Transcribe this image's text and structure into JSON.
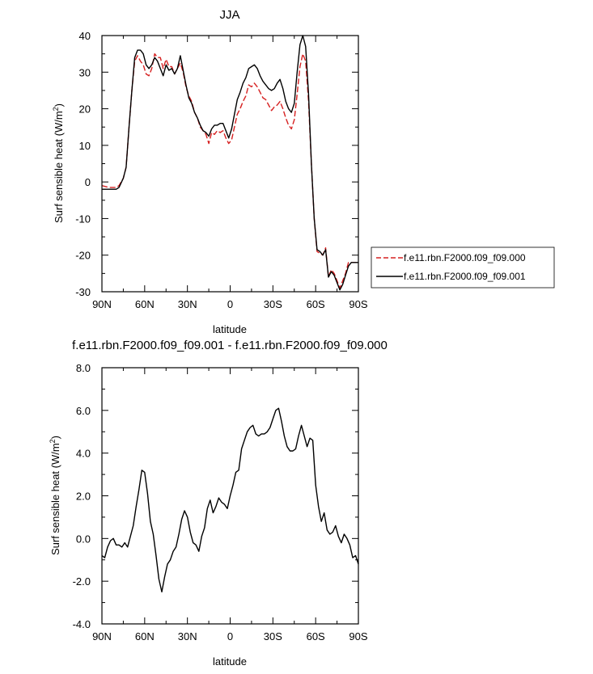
{
  "chart_data": [
    {
      "type": "line",
      "title": "JJA",
      "xlabel": "latitude",
      "ylabel": "Surf sensible heat (W/m",
      "ylabel_sup": "2",
      "ylabel_close": ")",
      "xlim": [
        90,
        -90
      ],
      "ylim": [
        -30,
        40
      ],
      "x_ticks": [
        90,
        60,
        30,
        0,
        -30,
        -60,
        -90
      ],
      "x_tick_labels": [
        "90N",
        "60N",
        "30N",
        "0",
        "30S",
        "60S",
        "90S"
      ],
      "y_ticks": [
        -30,
        -20,
        -10,
        0,
        10,
        20,
        30,
        40
      ],
      "y_tick_labels": [
        "-30",
        "-20",
        "-10",
        "0",
        "10",
        "20",
        "30",
        "40"
      ],
      "legend": "right",
      "series": [
        {
          "name": "f.e11.rbn.F2000.f09_f09.000",
          "color": "#d62020",
          "dash": "dashed",
          "x": [
            90,
            85,
            82,
            80,
            78,
            75,
            73,
            71,
            69,
            67,
            65,
            63,
            61,
            59,
            57,
            55,
            53,
            51,
            49,
            47,
            45,
            43,
            41,
            39,
            37,
            35,
            33,
            31,
            29,
            27,
            25,
            23,
            21,
            19,
            17,
            15,
            13,
            11,
            9,
            7,
            5,
            3,
            1,
            -1,
            -3,
            -5,
            -7,
            -9,
            -11,
            -13,
            -15,
            -17,
            -19,
            -21,
            -23,
            -25,
            -27,
            -29,
            -31,
            -33,
            -35,
            -37,
            -39,
            -41,
            -43,
            -45,
            -47,
            -49,
            -51,
            -53,
            -55,
            -57,
            -59,
            -61,
            -63,
            -65,
            -67,
            -69,
            -71,
            -73,
            -75,
            -77,
            -79,
            -81,
            -83,
            -85,
            -87,
            -90
          ],
          "y": [
            -1,
            -1.5,
            -1.5,
            -1.5,
            -1,
            1,
            4,
            15,
            25,
            33,
            34.5,
            33,
            32,
            29.5,
            29,
            31,
            35,
            34,
            34,
            31,
            33.5,
            31.5,
            31.5,
            29.5,
            31,
            32.5,
            30,
            26,
            23.5,
            22,
            19,
            17.5,
            15,
            14,
            13,
            10.5,
            13.5,
            13,
            14,
            13.5,
            14,
            12,
            10.5,
            11.5,
            15,
            18.5,
            20,
            22,
            23.5,
            26.5,
            26,
            27,
            26,
            24.5,
            23,
            22.5,
            21,
            19.5,
            20.5,
            21,
            22,
            20,
            17.5,
            15.5,
            14.5,
            17,
            24,
            31.5,
            35,
            33,
            22,
            5,
            -10,
            -19,
            -19.5,
            -20,
            -18,
            -26,
            -24,
            -25,
            -27,
            -29,
            -27,
            -25,
            -22,
            -22,
            -22,
            -22
          ]
        },
        {
          "name": "f.e11.rbn.F2000.f09_f09.001",
          "color": "#000000",
          "dash": "solid",
          "x": [
            90,
            85,
            82,
            80,
            78,
            75,
            73,
            71,
            69,
            67,
            65,
            63,
            61,
            59,
            57,
            55,
            53,
            51,
            49,
            47,
            45,
            43,
            41,
            39,
            37,
            35,
            33,
            31,
            29,
            27,
            25,
            23,
            21,
            19,
            17,
            15,
            13,
            11,
            9,
            7,
            5,
            3,
            1,
            -1,
            -3,
            -5,
            -7,
            -9,
            -11,
            -13,
            -15,
            -17,
            -19,
            -21,
            -23,
            -25,
            -27,
            -29,
            -31,
            -33,
            -35,
            -37,
            -39,
            -41,
            -43,
            -45,
            -47,
            -49,
            -51,
            -53,
            -55,
            -57,
            -59,
            -61,
            -63,
            -65,
            -67,
            -69,
            -71,
            -73,
            -75,
            -77,
            -79,
            -81,
            -83,
            -85,
            -87,
            -90
          ],
          "y": [
            -2,
            -2,
            -2,
            -2,
            -1.5,
            1,
            4,
            15,
            25,
            34,
            36,
            36,
            35,
            32,
            31,
            32,
            34,
            33,
            31,
            29,
            32,
            30.5,
            31,
            29.5,
            31,
            34.5,
            30.5,
            26.5,
            23,
            21.5,
            19,
            17.5,
            15.5,
            14,
            13.5,
            12.5,
            14.5,
            15.5,
            15.5,
            16,
            16,
            14,
            12,
            14.5,
            18.5,
            22.5,
            24.5,
            27,
            28.5,
            31,
            31.5,
            32,
            31,
            29,
            27.5,
            26.5,
            25.5,
            25,
            25.5,
            27,
            28,
            25.5,
            22,
            20,
            19,
            21.5,
            30,
            37.5,
            40,
            37,
            24,
            5,
            -10,
            -18.5,
            -19,
            -20,
            -18.5,
            -26,
            -24.5,
            -25.5,
            -27.5,
            -29.5,
            -28,
            -25.5,
            -23,
            -22,
            -22,
            -22
          ]
        }
      ]
    },
    {
      "type": "line",
      "title": "f.e11.rbn.F2000.f09_f09.001 - f.e11.rbn.F2000.f09_f09.000",
      "xlabel": "latitude",
      "ylabel": "Surf sensible heat (W/m",
      "ylabel_sup": "2",
      "ylabel_close": ")",
      "xlim": [
        90,
        -90
      ],
      "ylim": [
        -4,
        8
      ],
      "x_ticks": [
        90,
        60,
        30,
        0,
        -30,
        -60,
        -90
      ],
      "x_tick_labels": [
        "90N",
        "60N",
        "30N",
        "0",
        "30S",
        "60S",
        "90S"
      ],
      "y_ticks": [
        -4,
        -2,
        0,
        2,
        4,
        6,
        8
      ],
      "y_tick_labels": [
        "-4.0",
        "-2.0",
        "0.0",
        "2.0",
        "4.0",
        "6.0",
        "8.0"
      ],
      "series": [
        {
          "color": "#000000",
          "dash": "solid",
          "x": [
            90,
            88,
            86,
            84,
            82,
            80,
            78,
            76,
            74,
            72,
            70,
            68,
            66,
            64,
            62,
            60,
            58,
            56,
            54,
            52,
            50,
            48,
            46,
            44,
            42,
            40,
            38,
            36,
            34,
            32,
            30,
            28,
            26,
            24,
            22,
            20,
            18,
            16,
            14,
            12,
            10,
            8,
            6,
            4,
            2,
            0,
            -2,
            -4,
            -6,
            -8,
            -10,
            -12,
            -14,
            -16,
            -18,
            -20,
            -22,
            -24,
            -26,
            -28,
            -30,
            -32,
            -34,
            -36,
            -38,
            -40,
            -42,
            -44,
            -46,
            -48,
            -50,
            -52,
            -54,
            -56,
            -58,
            -60,
            -62,
            -64,
            -66,
            -68,
            -70,
            -72,
            -74,
            -76,
            -78,
            -80,
            -82,
            -84,
            -86,
            -88,
            -90
          ],
          "y": [
            -0.8,
            -0.9,
            -0.4,
            -0.1,
            0,
            -0.3,
            -0.3,
            -0.4,
            -0.2,
            -0.4,
            0.1,
            0.6,
            1.5,
            2.3,
            3.2,
            3.1,
            2.1,
            0.8,
            0.2,
            -0.8,
            -1.9,
            -2.5,
            -1.8,
            -1.2,
            -1.0,
            -0.6,
            -0.4,
            0.2,
            0.9,
            1.3,
            1.0,
            0.3,
            -0.2,
            -0.3,
            -0.6,
            0.1,
            0.5,
            1.4,
            1.8,
            1.2,
            1.5,
            1.9,
            1.7,
            1.6,
            1.4,
            2.0,
            2.5,
            3.1,
            3.2,
            4.2,
            4.6,
            5.0,
            5.2,
            5.3,
            4.9,
            4.8,
            4.9,
            4.9,
            5.0,
            5.2,
            5.6,
            6.0,
            6.1,
            5.5,
            4.8,
            4.3,
            4.1,
            4.1,
            4.2,
            4.8,
            5.3,
            4.8,
            4.3,
            4.7,
            4.6,
            2.5,
            1.5,
            0.8,
            1.2,
            0.4,
            0.2,
            0.3,
            0.6,
            0.1,
            -0.2,
            0.2,
            0,
            -0.3,
            -0.9,
            -0.8,
            -1.2
          ]
        }
      ]
    }
  ]
}
